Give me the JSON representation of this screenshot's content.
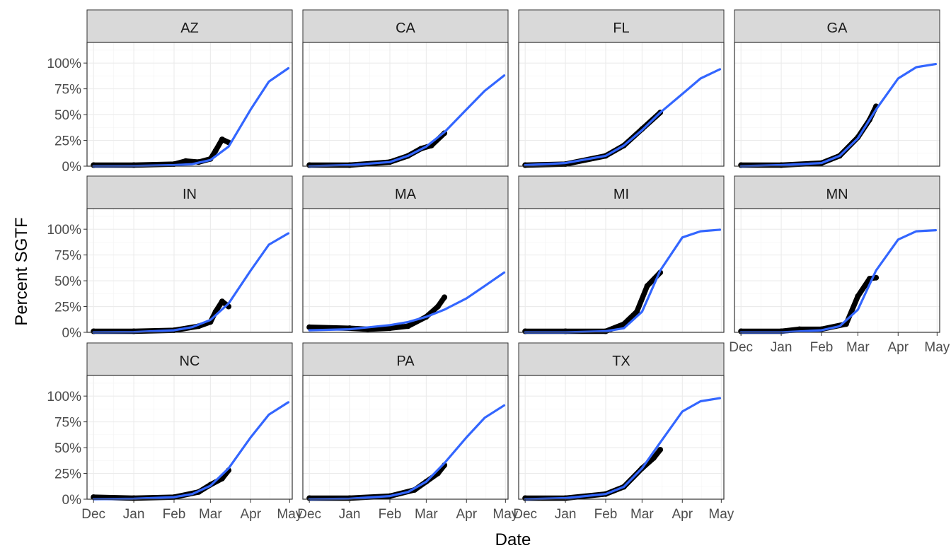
{
  "chart_data": {
    "type": "line",
    "xlabel": "Date",
    "ylabel": "Percent SGTF",
    "xlim": [
      "2020-11-26",
      "2021-05-03"
    ],
    "ylim": [
      0,
      1.2
    ],
    "x_ticks": [
      "2020-12-01",
      "2021-01-01",
      "2021-02-01",
      "2021-03-01",
      "2021-04-01",
      "2021-05-01"
    ],
    "x_tick_labels": [
      "Dec",
      "Jan",
      "Feb",
      "Mar",
      "Apr",
      "May"
    ],
    "y_ticks": [
      0,
      0.25,
      0.5,
      0.75,
      1.0
    ],
    "y_tick_labels": [
      "0%",
      "25%",
      "50%",
      "75%",
      "100%"
    ],
    "grid": true,
    "colors": {
      "fit": "#3366ff",
      "observed": "#000000"
    },
    "facets": [
      {
        "state": "AZ",
        "fit": {
          "x": [
            "2020-12-01",
            "2021-01-01",
            "2021-02-01",
            "2021-02-15",
            "2021-03-01",
            "2021-03-15",
            "2021-04-01",
            "2021-04-15",
            "2021-04-30"
          ],
          "y": [
            0.0,
            0.002,
            0.01,
            0.02,
            0.06,
            0.19,
            0.55,
            0.82,
            0.95
          ]
        },
        "observed": {
          "x": [
            "2020-12-01",
            "2021-01-01",
            "2021-02-01",
            "2021-02-10",
            "2021-02-20",
            "2021-03-01",
            "2021-03-05",
            "2021-03-10",
            "2021-03-15"
          ],
          "y": [
            0.01,
            0.01,
            0.02,
            0.05,
            0.04,
            0.07,
            0.15,
            0.26,
            0.23
          ]
        }
      },
      {
        "state": "CA",
        "fit": {
          "x": [
            "2020-12-01",
            "2021-01-01",
            "2021-02-01",
            "2021-02-15",
            "2021-03-01",
            "2021-03-15",
            "2021-04-01",
            "2021-04-15",
            "2021-04-30"
          ],
          "y": [
            0.0,
            0.01,
            0.04,
            0.1,
            0.19,
            0.33,
            0.55,
            0.73,
            0.88
          ]
        },
        "observed": {
          "x": [
            "2020-12-01",
            "2021-01-01",
            "2021-02-01",
            "2021-02-15",
            "2021-02-25",
            "2021-03-05",
            "2021-03-15"
          ],
          "y": [
            0.01,
            0.01,
            0.04,
            0.1,
            0.17,
            0.2,
            0.32
          ]
        }
      },
      {
        "state": "FL",
        "fit": {
          "x": [
            "2020-12-01",
            "2021-01-01",
            "2021-02-01",
            "2021-02-15",
            "2021-03-01",
            "2021-03-15",
            "2021-04-01",
            "2021-04-15",
            "2021-04-30"
          ],
          "y": [
            0.01,
            0.03,
            0.1,
            0.2,
            0.35,
            0.52,
            0.7,
            0.85,
            0.94
          ]
        },
        "observed": {
          "x": [
            "2020-12-01",
            "2021-01-01",
            "2021-02-01",
            "2021-02-15",
            "2021-03-01",
            "2021-03-15"
          ],
          "y": [
            0.01,
            0.02,
            0.1,
            0.2,
            0.36,
            0.52
          ]
        }
      },
      {
        "state": "GA",
        "fit": {
          "x": [
            "2020-12-01",
            "2021-01-01",
            "2021-02-01",
            "2021-02-15",
            "2021-03-01",
            "2021-03-15",
            "2021-04-01",
            "2021-04-15",
            "2021-04-30"
          ],
          "y": [
            0.0,
            0.01,
            0.03,
            0.1,
            0.27,
            0.55,
            0.85,
            0.96,
            0.99
          ]
        },
        "observed": {
          "x": [
            "2020-12-01",
            "2021-01-01",
            "2021-02-01",
            "2021-02-15",
            "2021-03-01",
            "2021-03-10",
            "2021-03-15"
          ],
          "y": [
            0.01,
            0.01,
            0.03,
            0.1,
            0.28,
            0.45,
            0.58
          ]
        }
      },
      {
        "state": "IN",
        "fit": {
          "x": [
            "2020-12-01",
            "2021-01-01",
            "2021-02-01",
            "2021-02-15",
            "2021-03-01",
            "2021-03-15",
            "2021-04-01",
            "2021-04-15",
            "2021-04-30"
          ],
          "y": [
            0.0,
            0.003,
            0.02,
            0.05,
            0.12,
            0.28,
            0.6,
            0.85,
            0.96
          ]
        },
        "observed": {
          "x": [
            "2020-12-01",
            "2021-01-01",
            "2021-02-01",
            "2021-02-20",
            "2021-03-01",
            "2021-03-05",
            "2021-03-10",
            "2021-03-15"
          ],
          "y": [
            0.01,
            0.01,
            0.02,
            0.06,
            0.1,
            0.2,
            0.3,
            0.25
          ]
        }
      },
      {
        "state": "MA",
        "fit": {
          "x": [
            "2020-12-01",
            "2021-01-01",
            "2021-02-01",
            "2021-02-15",
            "2021-03-01",
            "2021-03-15",
            "2021-04-01",
            "2021-04-15",
            "2021-04-30"
          ],
          "y": [
            0.02,
            0.03,
            0.07,
            0.1,
            0.15,
            0.22,
            0.33,
            0.45,
            0.58
          ]
        },
        "observed": {
          "x": [
            "2020-12-01",
            "2021-01-01",
            "2021-01-15",
            "2021-02-01",
            "2021-02-15",
            "2021-03-01",
            "2021-03-10",
            "2021-03-15"
          ],
          "y": [
            0.05,
            0.04,
            0.03,
            0.04,
            0.06,
            0.15,
            0.25,
            0.34
          ]
        }
      },
      {
        "state": "MI",
        "fit": {
          "x": [
            "2020-12-01",
            "2021-01-01",
            "2021-02-01",
            "2021-02-15",
            "2021-03-01",
            "2021-03-15",
            "2021-04-01",
            "2021-04-15",
            "2021-04-30"
          ],
          "y": [
            0.0,
            0.0,
            0.01,
            0.04,
            0.2,
            0.6,
            0.92,
            0.98,
            0.995
          ]
        },
        "observed": {
          "x": [
            "2020-12-01",
            "2021-01-01",
            "2021-02-01",
            "2021-02-15",
            "2021-02-25",
            "2021-03-05",
            "2021-03-15"
          ],
          "y": [
            0.01,
            0.01,
            0.01,
            0.08,
            0.2,
            0.45,
            0.58
          ]
        }
      },
      {
        "state": "MN",
        "fit": {
          "x": [
            "2020-12-01",
            "2021-01-01",
            "2021-02-01",
            "2021-02-15",
            "2021-03-01",
            "2021-03-15",
            "2021-04-01",
            "2021-04-15",
            "2021-04-30"
          ],
          "y": [
            0.0,
            0.0,
            0.02,
            0.06,
            0.22,
            0.6,
            0.9,
            0.98,
            0.99
          ]
        },
        "observed": {
          "x": [
            "2020-12-01",
            "2021-01-01",
            "2021-01-15",
            "2021-02-01",
            "2021-02-20",
            "2021-03-01",
            "2021-03-10",
            "2021-03-15"
          ],
          "y": [
            0.01,
            0.01,
            0.03,
            0.03,
            0.08,
            0.35,
            0.52,
            0.53
          ]
        }
      },
      {
        "state": "NC",
        "fit": {
          "x": [
            "2020-12-01",
            "2021-01-01",
            "2021-02-01",
            "2021-02-15",
            "2021-03-01",
            "2021-03-15",
            "2021-04-01",
            "2021-04-15",
            "2021-04-30"
          ],
          "y": [
            0.0,
            0.004,
            0.02,
            0.05,
            0.13,
            0.3,
            0.6,
            0.82,
            0.94
          ]
        },
        "observed": {
          "x": [
            "2020-12-01",
            "2021-01-01",
            "2021-02-01",
            "2021-02-20",
            "2021-03-01",
            "2021-03-10",
            "2021-03-15"
          ],
          "y": [
            0.02,
            0.01,
            0.02,
            0.07,
            0.14,
            0.2,
            0.28
          ]
        }
      },
      {
        "state": "PA",
        "fit": {
          "x": [
            "2020-12-01",
            "2021-01-01",
            "2021-02-01",
            "2021-02-15",
            "2021-03-01",
            "2021-03-15",
            "2021-04-01",
            "2021-04-15",
            "2021-04-30"
          ],
          "y": [
            0.0,
            0.005,
            0.03,
            0.07,
            0.17,
            0.35,
            0.6,
            0.79,
            0.91
          ]
        },
        "observed": {
          "x": [
            "2020-12-01",
            "2021-01-01",
            "2021-02-01",
            "2021-02-20",
            "2021-03-01",
            "2021-03-10",
            "2021-03-15"
          ],
          "y": [
            0.01,
            0.01,
            0.03,
            0.09,
            0.17,
            0.25,
            0.33
          ]
        }
      },
      {
        "state": "TX",
        "fit": {
          "x": [
            "2020-12-01",
            "2021-01-01",
            "2021-02-01",
            "2021-02-15",
            "2021-03-01",
            "2021-03-15",
            "2021-04-01",
            "2021-04-15",
            "2021-04-30"
          ],
          "y": [
            0.0,
            0.01,
            0.05,
            0.12,
            0.3,
            0.55,
            0.85,
            0.95,
            0.98
          ]
        },
        "observed": {
          "x": [
            "2020-12-01",
            "2021-01-01",
            "2021-02-01",
            "2021-02-15",
            "2021-03-01",
            "2021-03-10",
            "2021-03-15"
          ],
          "y": [
            0.01,
            0.01,
            0.05,
            0.12,
            0.3,
            0.4,
            0.48
          ]
        }
      }
    ]
  }
}
